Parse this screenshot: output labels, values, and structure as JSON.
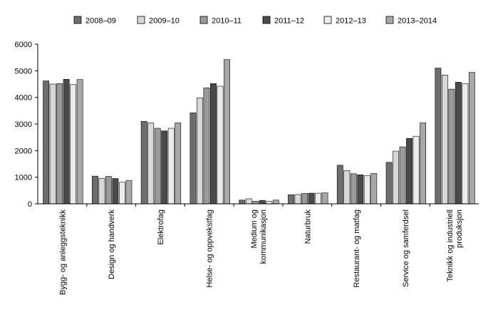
{
  "chart_data": {
    "type": "bar",
    "title": "",
    "xlabel": "",
    "ylabel": "",
    "ylim": [
      0,
      6000
    ],
    "yticks": [
      "0",
      "1000",
      "2000",
      "3000",
      "4000",
      "5000",
      "6000"
    ],
    "grid": false,
    "legend_position": "top",
    "categories": [
      [
        "Bygg- og anleggsteknikk"
      ],
      [
        "Design og handverk"
      ],
      [
        "Elektrofag"
      ],
      [
        "Helse- og oppvekstfag"
      ],
      [
        "Medium og",
        "kommunikasjon"
      ],
      [
        "Naturbruk"
      ],
      [
        "Restaurant- og matfag"
      ],
      [
        "Service og samferdsel"
      ],
      [
        "Teknikk og industriell",
        "produksjon"
      ]
    ],
    "series": [
      {
        "name": "2008–09",
        "color": "#6e6e6e",
        "values": [
          4620,
          1040,
          3100,
          3420,
          140,
          340,
          1450,
          1560,
          5100
        ]
      },
      {
        "name": "2009–10",
        "color": "#d8d8d8",
        "values": [
          4500,
          960,
          3040,
          3980,
          190,
          350,
          1250,
          1980,
          4840
        ]
      },
      {
        "name": "2010–11",
        "color": "#9a9a9a",
        "values": [
          4520,
          1030,
          2840,
          4360,
          100,
          390,
          1130,
          2140,
          4310
        ]
      },
      {
        "name": "2011–12",
        "color": "#4a4a4a",
        "values": [
          4680,
          950,
          2740,
          4520,
          130,
          400,
          1090,
          2460,
          4570
        ]
      },
      {
        "name": "2012–13",
        "color": "#ececec",
        "values": [
          4480,
          810,
          2840,
          4420,
          90,
          400,
          1060,
          2540,
          4520
        ]
      },
      {
        "name": "2013–2014",
        "color": "#a8a8a8",
        "values": [
          4670,
          880,
          3040,
          5420,
          140,
          410,
          1140,
          3040,
          4940
        ]
      }
    ]
  }
}
